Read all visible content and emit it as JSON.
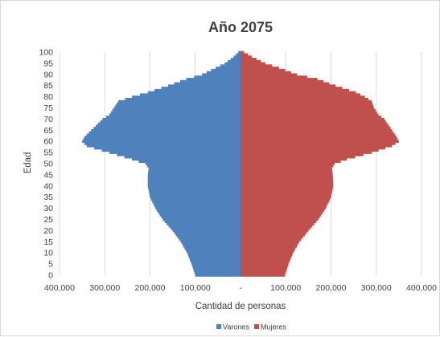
{
  "chart_data": {
    "type": "bar",
    "orientation": "horizontal",
    "title": "Año 2075",
    "xlabel": "Cantidad de personas",
    "ylabel": "Edad",
    "xlim": [
      -400000,
      400000
    ],
    "ylim": [
      0,
      100
    ],
    "x_tick_labels": [
      "400,000",
      "300,000",
      "200,000",
      "100,000",
      "-",
      "100,000",
      "200,000",
      "300,000",
      "400,000"
    ],
    "x_tick_values": [
      -400000,
      -300000,
      -200000,
      -100000,
      0,
      100000,
      200000,
      300000,
      400000
    ],
    "y_tick_labels": [
      "0",
      "5",
      "10",
      "15",
      "20",
      "25",
      "30",
      "35",
      "40",
      "45",
      "50",
      "55",
      "60",
      "65",
      "70",
      "75",
      "80",
      "85",
      "90",
      "95",
      "100"
    ],
    "y_tick_values": [
      0,
      5,
      10,
      15,
      20,
      25,
      30,
      35,
      40,
      45,
      50,
      55,
      60,
      65,
      70,
      75,
      80,
      85,
      90,
      95,
      100
    ],
    "grid": "vertical",
    "legend_position": "bottom",
    "series": [
      {
        "name": "Varones",
        "color": "#4f81bd",
        "profile_ages": [
          0,
          5,
          10,
          15,
          20,
          25,
          30,
          35,
          40,
          45,
          48,
          50,
          52,
          55,
          58,
          60,
          62,
          65,
          70,
          72,
          75,
          78,
          80,
          82,
          85,
          88,
          90,
          93,
          95,
          98,
          100
        ],
        "profile_values": [
          100000,
          108000,
          118000,
          132000,
          150000,
          172000,
          188000,
          200000,
          205000,
          205000,
          203000,
          210000,
          240000,
          290000,
          340000,
          350000,
          345000,
          330000,
          305000,
          290000,
          280000,
          270000,
          240000,
          205000,
          160000,
          120000,
          85000,
          55000,
          35000,
          15000,
          5000
        ]
      },
      {
        "name": "Mujeres",
        "color": "#c0504d",
        "profile_ages": [
          0,
          5,
          10,
          15,
          20,
          25,
          30,
          35,
          40,
          45,
          48,
          50,
          52,
          55,
          58,
          60,
          62,
          65,
          70,
          72,
          75,
          78,
          80,
          82,
          85,
          88,
          90,
          93,
          95,
          98,
          100
        ],
        "profile_values": [
          98000,
          106000,
          116000,
          130000,
          150000,
          172000,
          188000,
          200000,
          205000,
          204000,
          202000,
          208000,
          235000,
          290000,
          335000,
          350000,
          345000,
          335000,
          318000,
          305000,
          295000,
          290000,
          275000,
          255000,
          210000,
          170000,
          125000,
          85000,
          55000,
          25000,
          8000
        ]
      }
    ]
  }
}
